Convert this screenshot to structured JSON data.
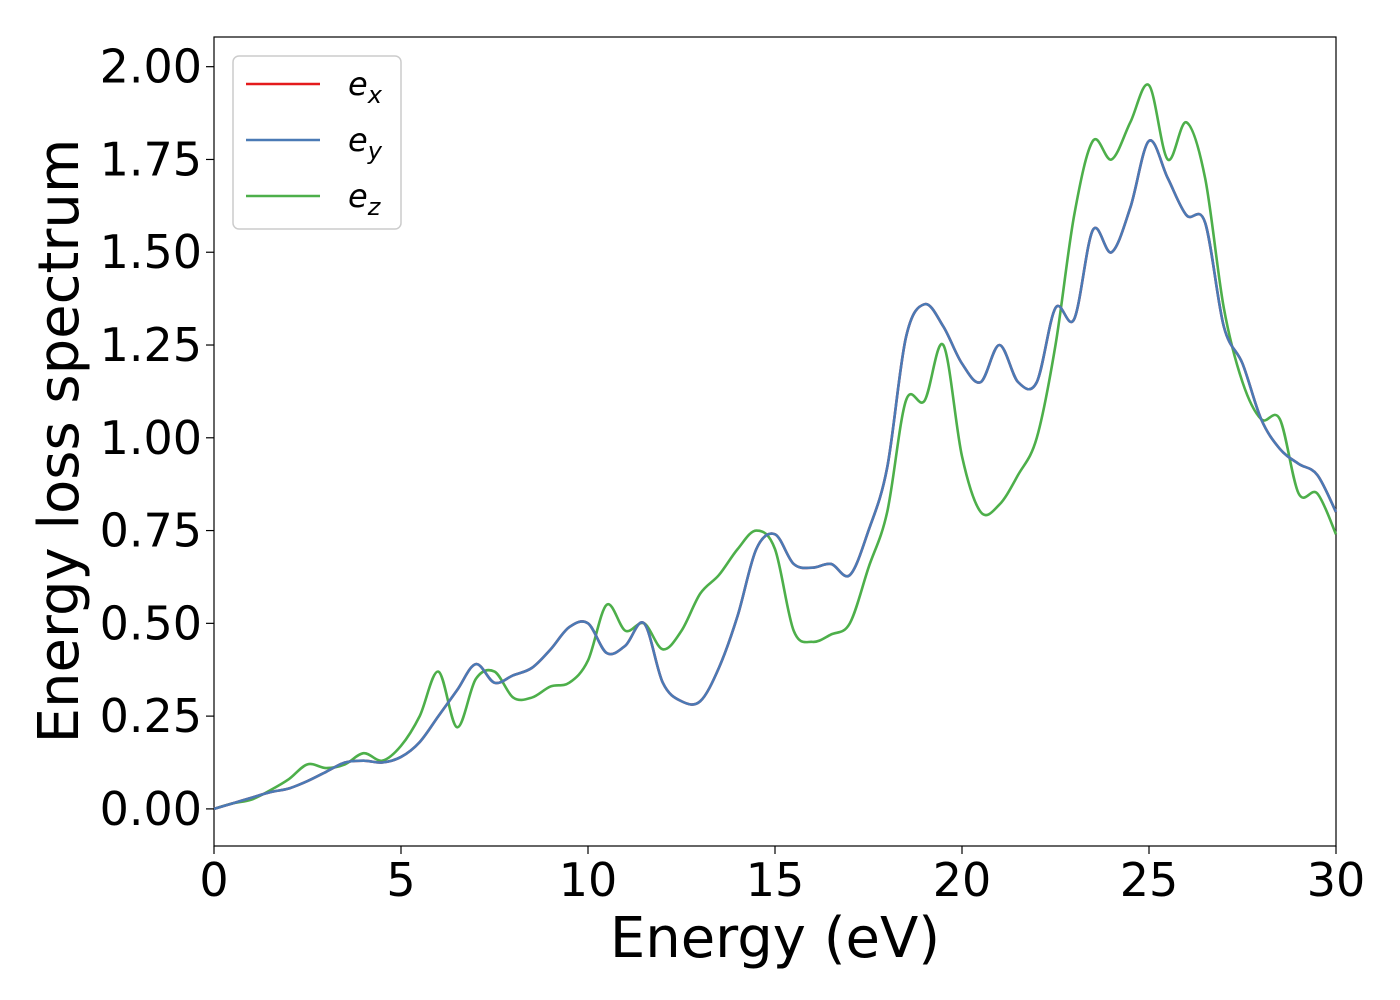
{
  "chart_data": {
    "type": "line",
    "xlabel": "Energy (eV)",
    "ylabel": "Energy loss spectrum",
    "xlim": [
      0,
      30
    ],
    "ylim": [
      -0.1,
      2.08
    ],
    "xticks": [
      0,
      5,
      10,
      15,
      20,
      25,
      30
    ],
    "xtick_labels": [
      "0",
      "5",
      "10",
      "15",
      "20",
      "25",
      "30"
    ],
    "yticks": [
      0.0,
      0.25,
      0.5,
      0.75,
      1.0,
      1.25,
      1.5,
      1.75,
      2.0
    ],
    "ytick_labels": [
      "0.00",
      "0.25",
      "0.50",
      "0.75",
      "1.00",
      "1.25",
      "1.50",
      "1.75",
      "2.00"
    ],
    "grid": false,
    "legend_position": "top-left",
    "series": [
      {
        "name": "e",
        "subscript": "x",
        "color": "#e41a1c",
        "x": [
          0,
          0.5,
          1,
          1.5,
          2,
          2.5,
          3,
          3.5,
          4,
          4.5,
          5,
          5.5,
          6,
          6.5,
          7,
          7.5,
          8,
          8.5,
          9,
          9.5,
          10,
          10.5,
          11,
          11.5,
          12,
          12.5,
          13,
          13.5,
          14,
          14.5,
          15,
          15.5,
          16,
          16.5,
          17,
          17.5,
          18,
          18.5,
          19,
          19.5,
          20,
          20.5,
          21,
          21.5,
          22,
          22.5,
          23,
          23.5,
          24,
          24.5,
          25,
          25.5,
          26,
          26.5,
          27,
          27.5,
          28,
          28.5,
          29,
          29.5,
          30
        ],
        "y": [
          0.0,
          0.015,
          0.03,
          0.045,
          0.055,
          0.075,
          0.1,
          0.125,
          0.13,
          0.125,
          0.14,
          0.18,
          0.25,
          0.32,
          0.39,
          0.34,
          0.36,
          0.38,
          0.43,
          0.49,
          0.5,
          0.42,
          0.44,
          0.5,
          0.34,
          0.29,
          0.29,
          0.38,
          0.52,
          0.7,
          0.74,
          0.66,
          0.65,
          0.66,
          0.63,
          0.75,
          0.92,
          1.27,
          1.36,
          1.3,
          1.2,
          1.15,
          1.25,
          1.15,
          1.15,
          1.35,
          1.32,
          1.56,
          1.5,
          1.62,
          1.8,
          1.7,
          1.6,
          1.58,
          1.3,
          1.2,
          1.05,
          0.97,
          0.93,
          0.9,
          0.8
        ]
      },
      {
        "name": "e",
        "subscript": "y",
        "color": "#4a7ab5",
        "x": [
          0,
          0.5,
          1,
          1.5,
          2,
          2.5,
          3,
          3.5,
          4,
          4.5,
          5,
          5.5,
          6,
          6.5,
          7,
          7.5,
          8,
          8.5,
          9,
          9.5,
          10,
          10.5,
          11,
          11.5,
          12,
          12.5,
          13,
          13.5,
          14,
          14.5,
          15,
          15.5,
          16,
          16.5,
          17,
          17.5,
          18,
          18.5,
          19,
          19.5,
          20,
          20.5,
          21,
          21.5,
          22,
          22.5,
          23,
          23.5,
          24,
          24.5,
          25,
          25.5,
          26,
          26.5,
          27,
          27.5,
          28,
          28.5,
          29,
          29.5,
          30
        ],
        "y": [
          0.0,
          0.015,
          0.03,
          0.045,
          0.055,
          0.075,
          0.1,
          0.125,
          0.13,
          0.125,
          0.14,
          0.18,
          0.25,
          0.32,
          0.39,
          0.34,
          0.36,
          0.38,
          0.43,
          0.49,
          0.5,
          0.42,
          0.44,
          0.5,
          0.34,
          0.29,
          0.29,
          0.38,
          0.52,
          0.7,
          0.74,
          0.66,
          0.65,
          0.66,
          0.63,
          0.75,
          0.92,
          1.27,
          1.36,
          1.3,
          1.2,
          1.15,
          1.25,
          1.15,
          1.15,
          1.35,
          1.32,
          1.56,
          1.5,
          1.62,
          1.8,
          1.7,
          1.6,
          1.58,
          1.3,
          1.2,
          1.05,
          0.97,
          0.93,
          0.9,
          0.8
        ]
      },
      {
        "name": "e",
        "subscript": "z",
        "color": "#4daf4a",
        "x": [
          0,
          0.5,
          1,
          1.5,
          2,
          2.5,
          3,
          3.5,
          4,
          4.5,
          5,
          5.5,
          6,
          6.5,
          7,
          7.5,
          8,
          8.5,
          9,
          9.5,
          10,
          10.5,
          11,
          11.5,
          12,
          12.5,
          13,
          13.5,
          14,
          14.5,
          15,
          15.5,
          16,
          16.5,
          17,
          17.5,
          18,
          18.5,
          19,
          19.5,
          20,
          20.5,
          21,
          21.5,
          22,
          22.5,
          23,
          23.5,
          24,
          24.5,
          25,
          25.5,
          26,
          26.5,
          27,
          27.5,
          28,
          28.5,
          29,
          29.5,
          30
        ],
        "y": [
          0.0,
          0.015,
          0.025,
          0.05,
          0.08,
          0.12,
          0.11,
          0.12,
          0.15,
          0.13,
          0.17,
          0.25,
          0.37,
          0.22,
          0.35,
          0.37,
          0.3,
          0.3,
          0.33,
          0.34,
          0.4,
          0.55,
          0.48,
          0.5,
          0.43,
          0.48,
          0.58,
          0.63,
          0.7,
          0.75,
          0.7,
          0.48,
          0.45,
          0.47,
          0.5,
          0.65,
          0.8,
          1.1,
          1.1,
          1.25,
          0.95,
          0.8,
          0.82,
          0.9,
          1.0,
          1.25,
          1.6,
          1.8,
          1.75,
          1.85,
          1.95,
          1.75,
          1.85,
          1.7,
          1.35,
          1.15,
          1.05,
          1.05,
          0.85,
          0.85,
          0.74
        ]
      }
    ]
  }
}
